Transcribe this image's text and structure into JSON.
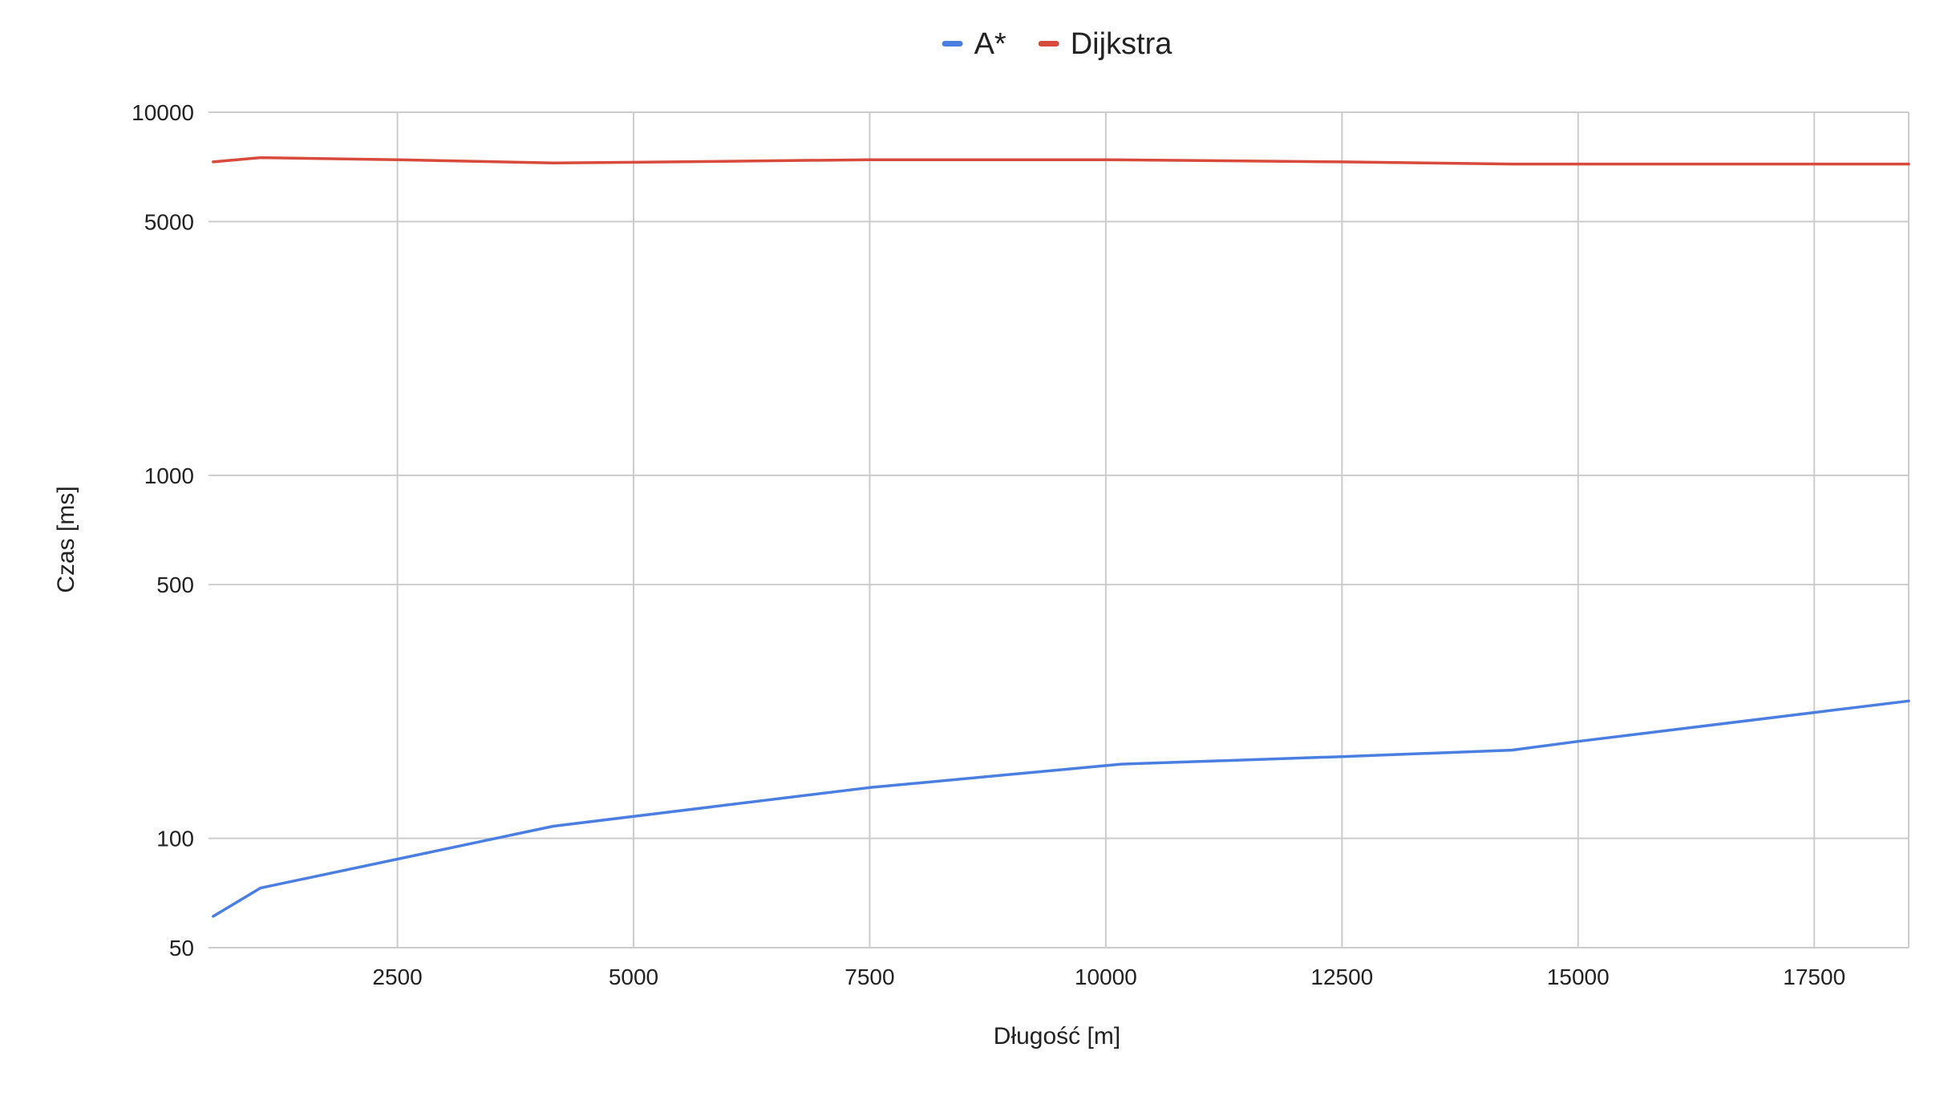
{
  "chart_data": {
    "type": "line",
    "xlabel": "Długość [m]",
    "ylabel": "Czas [ms]",
    "xlim": [
      500,
      18500
    ],
    "ylim": [
      50,
      10000
    ],
    "yscale": "log",
    "grid": true,
    "legend_position": "top",
    "x_ticks": [
      2500,
      5000,
      7500,
      10000,
      12500,
      15000,
      17500
    ],
    "x_tick_labels": [
      "2500",
      "5000",
      "7500",
      "10000",
      "12500",
      "15000",
      "17500"
    ],
    "y_ticks": [
      50,
      100,
      500,
      1000,
      5000,
      10000
    ],
    "y_tick_labels": [
      "50",
      "100",
      "500",
      "1000",
      "5000",
      "10000"
    ],
    "series": [
      {
        "name": "A*",
        "color": "#4a7ee0",
        "x": [
          550,
          1050,
          4150,
          7500,
          10150,
          12500,
          14300,
          15000,
          18500
        ],
        "y": [
          61,
          73,
          108,
          138,
          160,
          168,
          175,
          185,
          239
        ]
      },
      {
        "name": "Dijkstra",
        "color": "#d74a3c",
        "x": [
          550,
          1050,
          2500,
          4150,
          5000,
          7500,
          10000,
          12500,
          14300,
          15000,
          17500,
          18500
        ],
        "y": [
          7300,
          7500,
          7400,
          7250,
          7280,
          7400,
          7400,
          7300,
          7200,
          7200,
          7200,
          7200
        ]
      }
    ]
  }
}
